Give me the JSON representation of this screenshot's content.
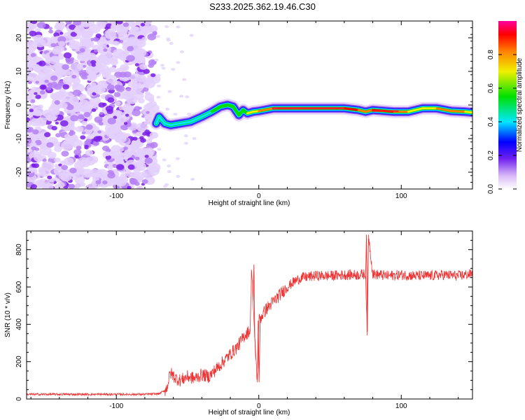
{
  "title": "S233.2025.362.19.46.C30",
  "chart_data": [
    {
      "type": "heatmap",
      "xlabel": "Height of straight line (km)",
      "ylabel": "Frequency (Hz)",
      "xlim": [
        -163,
        150
      ],
      "ylim": [
        -25,
        25
      ],
      "xticks": [
        -100,
        0,
        100
      ],
      "yticks": [
        -20,
        -10,
        0,
        10,
        20
      ],
      "noise_region_x": [
        -163,
        -73
      ],
      "ridge": {
        "x": [
          -72,
          -70,
          -66,
          -62,
          -55,
          -48,
          -40,
          -33,
          -27,
          -22,
          -18,
          -14,
          -11,
          -8,
          -4,
          0,
          10,
          30,
          60,
          70,
          75,
          80,
          95,
          105,
          115,
          125,
          135,
          145,
          150
        ],
        "y": [
          -5.5,
          -3.5,
          -5.5,
          -6,
          -5.5,
          -5,
          -3.5,
          -2,
          -0.5,
          0,
          -0.5,
          -3,
          -1.5,
          -2.5,
          -2,
          -1.8,
          -1,
          -1,
          -1,
          -1.5,
          -2,
          -1.5,
          -2,
          -2,
          -1,
          -1,
          -1.8,
          -2,
          -2.2
        ],
        "amp": [
          0.4,
          0.5,
          0.4,
          0.45,
          0.45,
          0.45,
          0.5,
          0.55,
          0.6,
          0.6,
          0.55,
          0.55,
          0.6,
          0.7,
          0.75,
          0.8,
          1.0,
          1.0,
          1.0,
          0.85,
          0.8,
          0.95,
          0.95,
          0.8,
          0.75,
          0.8,
          0.85,
          0.8,
          0.75
        ]
      },
      "colorbar": {
        "label": "Normalized spectral amplitude",
        "range": [
          0,
          1
        ],
        "ticks": [
          "0.0",
          "0.2",
          "0.4",
          "0.6",
          "0.8"
        ]
      }
    },
    {
      "type": "line",
      "xlabel": "Height of straight line (km)",
      "ylabel": "SNR (10 * v/v)",
      "xlim": [
        -163,
        150
      ],
      "ylim": [
        0,
        900
      ],
      "xticks": [
        -100,
        0,
        100
      ],
      "yticks": [
        0,
        200,
        400,
        600,
        800
      ],
      "series": [
        {
          "name": "SNR",
          "color": "#ee3333",
          "x": [
            -163,
            -140,
            -120,
            -100,
            -80,
            -70,
            -65,
            -62,
            -58,
            -55,
            -50,
            -45,
            -40,
            -35,
            -30,
            -25,
            -20,
            -15,
            -10,
            -6,
            -5,
            -3,
            -1,
            0,
            5,
            10,
            15,
            20,
            25,
            30,
            40,
            50,
            60,
            70,
            75,
            76,
            77,
            80,
            90,
            100,
            110,
            120,
            130,
            140,
            150
          ],
          "y": [
            25,
            25,
            25,
            25,
            25,
            28,
            50,
            140,
            110,
            100,
            120,
            110,
            130,
            120,
            160,
            200,
            240,
            280,
            340,
            370,
            720,
            330,
            90,
            420,
            480,
            520,
            560,
            600,
            630,
            650,
            660,
            660,
            665,
            665,
            670,
            360,
            880,
            670,
            660,
            665,
            660,
            660,
            665,
            660,
            670
          ]
        }
      ]
    }
  ]
}
